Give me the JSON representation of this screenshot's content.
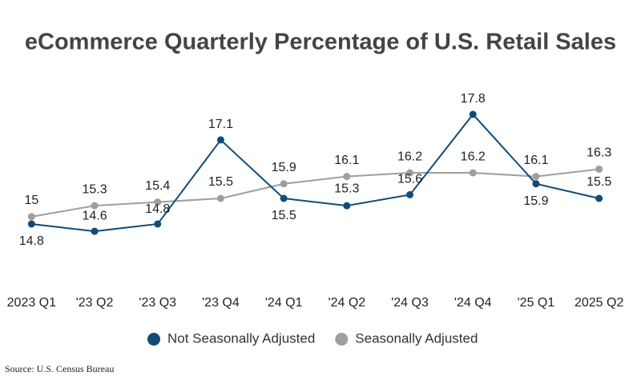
{
  "chart_data": {
    "type": "line",
    "title": "eCommerce Quarterly Percentage of U.S. Retail Sales",
    "categories": [
      "2023 Q1",
      "'23 Q2",
      "'23 Q3",
      "'23 Q4",
      "'24 Q1",
      "'24 Q2",
      "'24 Q3",
      "'24 Q4",
      "'25 Q1",
      "2025 Q2"
    ],
    "series": [
      {
        "name": "Not Seasonally Adjusted",
        "color": "#124b78",
        "values": [
          14.8,
          14.6,
          14.8,
          17.1,
          15.5,
          15.3,
          15.6,
          17.8,
          15.9,
          15.5
        ]
      },
      {
        "name": "Seasonally Adjusted",
        "color": "#9e9e9e",
        "values": [
          15.0,
          15.3,
          15.4,
          15.5,
          15.9,
          16.1,
          16.2,
          16.2,
          16.1,
          16.3
        ]
      }
    ],
    "ylim": [
      14,
      18.5
    ],
    "legend": "bottom",
    "source": "Source: U.S. Census Bureau"
  }
}
